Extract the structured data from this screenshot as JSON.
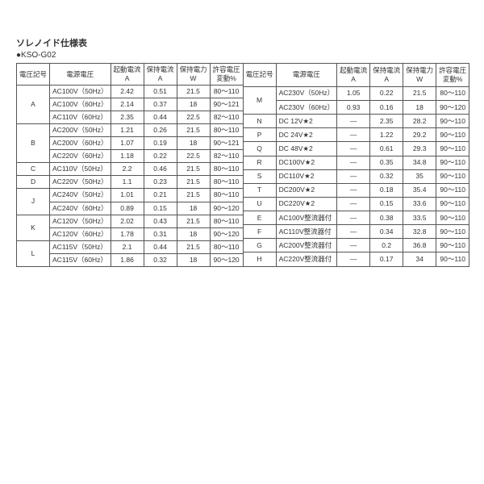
{
  "title": "ソレノイド仕様表",
  "subtitle": "●KSO-G02",
  "headers": {
    "h1": "電圧記号",
    "h2": "電源電圧",
    "h3a": "起動電流",
    "h3b": "A",
    "h4a": "保持電流",
    "h4b": "A",
    "h5a": "保持電力",
    "h5b": "W",
    "h6a": "許容電圧",
    "h6b": "変動%"
  },
  "left": [
    {
      "code": "A",
      "rowspan": 3,
      "volt": "AC100V（50Hz）",
      "c1": "2.42",
      "c2": "0.51",
      "c3": "21.5",
      "c4": "80～110"
    },
    {
      "volt": "AC100V（60Hz）",
      "c1": "2.14",
      "c2": "0.37",
      "c3": "18",
      "c4": "90～121"
    },
    {
      "volt": "AC110V（60Hz）",
      "c1": "2.35",
      "c2": "0.44",
      "c3": "22.5",
      "c4": "82～110"
    },
    {
      "code": "B",
      "rowspan": 3,
      "volt": "AC200V（50Hz）",
      "c1": "1.21",
      "c2": "0.26",
      "c3": "21.5",
      "c4": "80～110"
    },
    {
      "volt": "AC200V（60Hz）",
      "c1": "1.07",
      "c2": "0.19",
      "c3": "18",
      "c4": "90～121"
    },
    {
      "volt": "AC220V（60Hz）",
      "c1": "1.18",
      "c2": "0.22",
      "c3": "22.5",
      "c4": "82～110"
    },
    {
      "code": "C",
      "rowspan": 1,
      "volt": "AC110V（50Hz）",
      "c1": "2.2",
      "c2": "0.46",
      "c3": "21.5",
      "c4": "80～110"
    },
    {
      "code": "D",
      "rowspan": 1,
      "volt": "AC220V（50Hz）",
      "c1": "1.1",
      "c2": "0.23",
      "c3": "21.5",
      "c4": "80～110"
    },
    {
      "code": "J",
      "rowspan": 2,
      "volt": "AC240V（50Hz）",
      "c1": "1.01",
      "c2": "0.21",
      "c3": "21.5",
      "c4": "80～110"
    },
    {
      "volt": "AC240V（60Hz）",
      "c1": "0.89",
      "c2": "0.15",
      "c3": "18",
      "c4": "90～120"
    },
    {
      "code": "K",
      "rowspan": 2,
      "volt": "AC120V（50Hz）",
      "c1": "2.02",
      "c2": "0.43",
      "c3": "21.5",
      "c4": "80～110"
    },
    {
      "volt": "AC120V（60Hz）",
      "c1": "1.78",
      "c2": "0.31",
      "c3": "18",
      "c4": "90～120"
    },
    {
      "code": "L",
      "rowspan": 2,
      "volt": "AC115V（50Hz）",
      "c1": "2.1",
      "c2": "0.44",
      "c3": "21.5",
      "c4": "80～110"
    },
    {
      "volt": "AC115V（60Hz）",
      "c1": "1.86",
      "c2": "0.32",
      "c3": "18",
      "c4": "90～120"
    }
  ],
  "right": [
    {
      "code": "M",
      "rowspan": 2,
      "volt": "AC230V（50Hz）",
      "c1": "1.05",
      "c2": "0.22",
      "c3": "21.5",
      "c4": "80～110"
    },
    {
      "volt": "AC230V（60Hz）",
      "c1": "0.93",
      "c2": "0.16",
      "c3": "18",
      "c4": "90～120"
    },
    {
      "code": "N",
      "rowspan": 1,
      "volt": "DC 12V★2",
      "c1": "—",
      "c2": "2.35",
      "c3": "28.2",
      "c4": "90～110"
    },
    {
      "code": "P",
      "rowspan": 1,
      "volt": "DC 24V★2",
      "c1": "—",
      "c2": "1.22",
      "c3": "29.2",
      "c4": "90～110"
    },
    {
      "code": "Q",
      "rowspan": 1,
      "volt": "DC 48V★2",
      "c1": "—",
      "c2": "0.61",
      "c3": "29.3",
      "c4": "90～110"
    },
    {
      "code": "R",
      "rowspan": 1,
      "volt": "DC100V★2",
      "c1": "—",
      "c2": "0.35",
      "c3": "34.8",
      "c4": "90～110"
    },
    {
      "code": "S",
      "rowspan": 1,
      "volt": "DC110V★2",
      "c1": "—",
      "c2": "0.32",
      "c3": "35",
      "c4": "90～110"
    },
    {
      "code": "T",
      "rowspan": 1,
      "volt": "DC200V★2",
      "c1": "—",
      "c2": "0.18",
      "c3": "35.4",
      "c4": "90～110"
    },
    {
      "code": "U",
      "rowspan": 1,
      "volt": "DC220V★2",
      "c1": "—",
      "c2": "0.15",
      "c3": "33.6",
      "c4": "90～110"
    },
    {
      "code": "E",
      "rowspan": 1,
      "volt": "AC100V整流器付",
      "c1": "—",
      "c2": "0.38",
      "c3": "33.5",
      "c4": "90～110"
    },
    {
      "code": "F",
      "rowspan": 1,
      "volt": "AC110V整流器付",
      "c1": "—",
      "c2": "0.34",
      "c3": "32.8",
      "c4": "90～110"
    },
    {
      "code": "G",
      "rowspan": 1,
      "volt": "AC200V整流器付",
      "c1": "—",
      "c2": "0.2",
      "c3": "36.8",
      "c4": "90～110"
    },
    {
      "code": "H",
      "rowspan": 1,
      "volt": "AC220V整流器付",
      "c1": "—",
      "c2": "0.17",
      "c3": "34",
      "c4": "90～110"
    }
  ]
}
